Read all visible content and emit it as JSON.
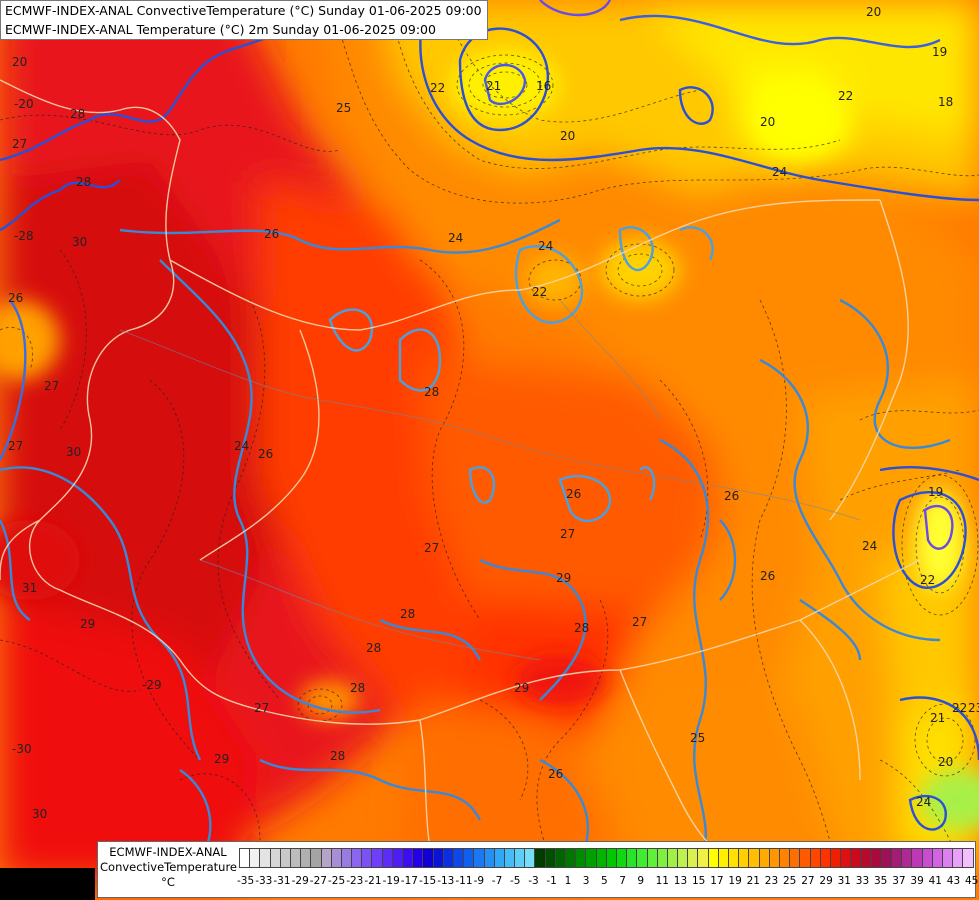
{
  "header": {
    "line1": "ECMWF-INDEX-ANAL ConvectiveTemperature (°C) Sunday 01-06-2025 09:00",
    "line2": "ECMWF-INDEX-ANAL Temperature (°C) 2m Sunday 01-06-2025 09:00"
  },
  "legend": {
    "title_line1": "ECMWF-INDEX-ANAL",
    "title_line2": "ConvectiveTemperature",
    "title_line3": "°C",
    "ticks": [
      "-35",
      "-33",
      "-31",
      "-29",
      "-27",
      "-25",
      "-23",
      "-21",
      "-19",
      "-17",
      "-15",
      "-13",
      "-11",
      "-9",
      "-7",
      "-5",
      "-3",
      "-1",
      "1",
      "3",
      "5",
      "7",
      "9",
      "11",
      "13",
      "15",
      "17",
      "19",
      "21",
      "23",
      "25",
      "27",
      "29",
      "31",
      "33",
      "35",
      "37",
      "39",
      "41",
      "43",
      "45"
    ],
    "colors": [
      "#ffffff",
      "#f2f2f2",
      "#e3e3e3",
      "#d6d6d6",
      "#c9c9c9",
      "#bcbcbc",
      "#b0b0b0",
      "#a4a4a4",
      "#b6a4c8",
      "#a68fd6",
      "#9a7be4",
      "#8c66ee",
      "#7d52f4",
      "#6f3ff7",
      "#5e2cf8",
      "#4d1cf7",
      "#3a0df4",
      "#2400e8",
      "#1000d6",
      "#0a14d8",
      "#0a2ee2",
      "#0c48ea",
      "#1060f0",
      "#1a78f4",
      "#2490f6",
      "#30a8f8",
      "#44bcf8",
      "#5ccef8",
      "#76ddf8",
      "#003c00",
      "#005000",
      "#006400",
      "#007800",
      "#008c00",
      "#00a000",
      "#00b400",
      "#00c800",
      "#10d810",
      "#28e428",
      "#40ec30",
      "#60f038",
      "#80f040",
      "#a0f048",
      "#bef050",
      "#daf050",
      "#f0f048",
      "#ffff00",
      "#fff000",
      "#ffe000",
      "#ffd000",
      "#ffbe00",
      "#ffaa00",
      "#ff9600",
      "#ff8200",
      "#ff6e00",
      "#ff5a00",
      "#ff4600",
      "#ff3200",
      "#f21e00",
      "#e01010",
      "#cc0a1c",
      "#b80a2c",
      "#a80a40",
      "#a01058",
      "#a41c74",
      "#b02894",
      "#bc38b4",
      "#c84cd0",
      "#d264e4",
      "#dc80f0",
      "#e8a0f8",
      "#f2c0fc"
    ]
  },
  "map_labels": [
    "20",
    "-20",
    "28",
    "27",
    "28",
    "30",
    "-28",
    "26",
    "27",
    "27",
    "30",
    "31",
    "29",
    "-29",
    "-30",
    "29",
    "30",
    "25",
    "26",
    "24",
    "24",
    "21",
    "22",
    "16",
    "20",
    "20",
    "19",
    "18",
    "22",
    "20",
    "24",
    "22",
    "28",
    "24",
    "26",
    "26",
    "27",
    "29",
    "27",
    "28",
    "28",
    "27",
    "26",
    "28",
    "28",
    "29",
    "27",
    "28",
    "26",
    "25",
    "26",
    "24",
    "22",
    "20",
    "21",
    "22",
    "23",
    "24",
    "19"
  ]
}
